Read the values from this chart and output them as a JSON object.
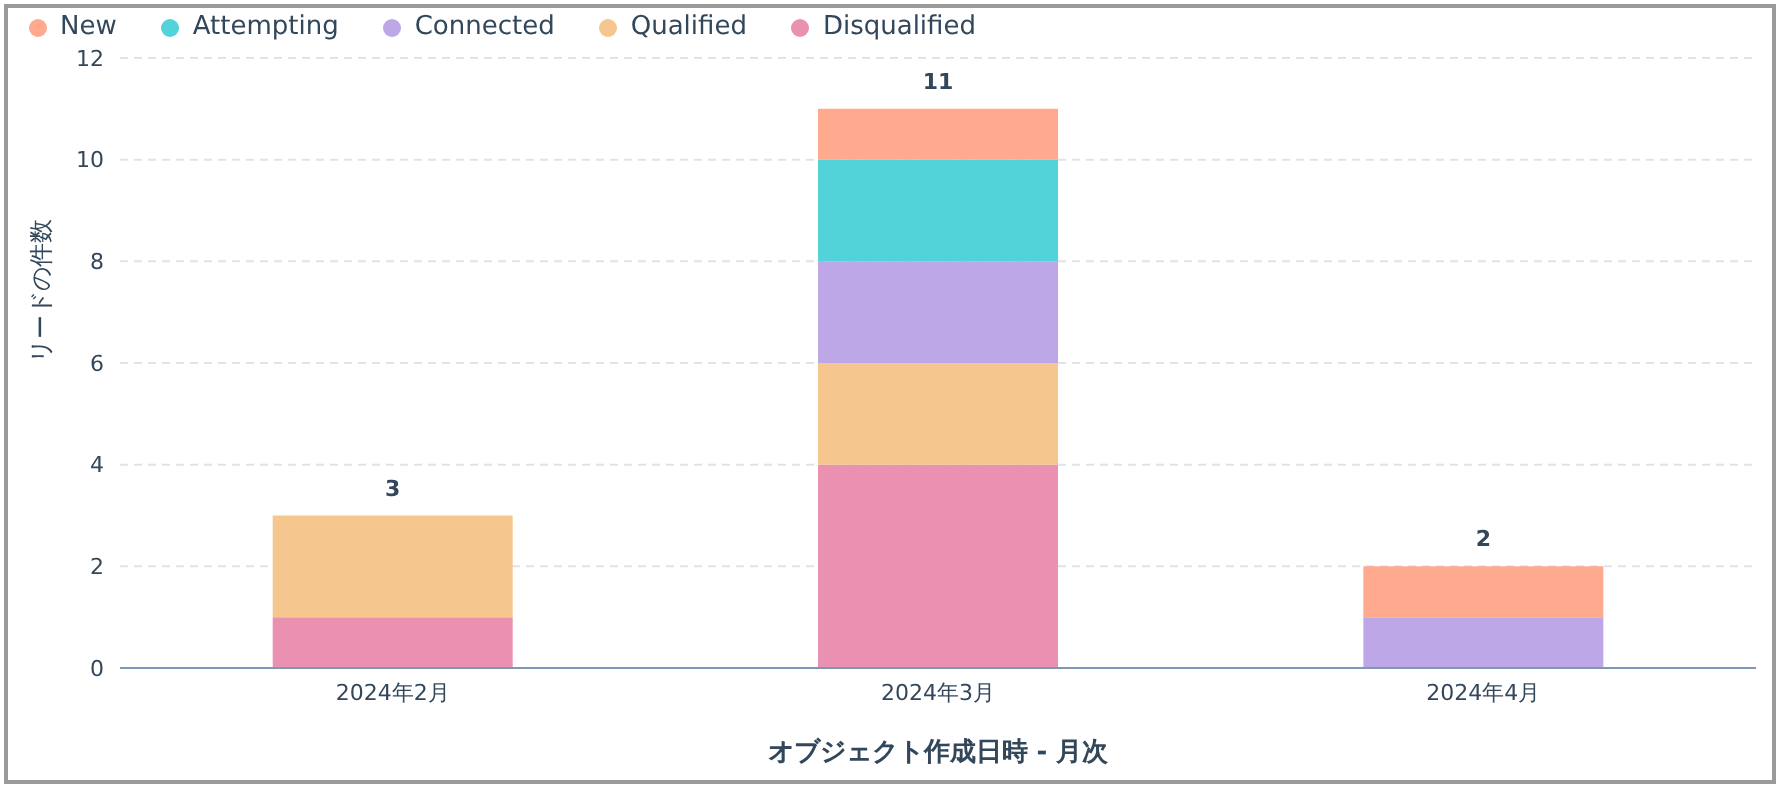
{
  "chart_data": {
    "type": "bar",
    "stacked": true,
    "xlabel": "オブジェクト作成日時 - 月次",
    "ylabel": "リードの件数",
    "categories": [
      "2024年2月",
      "2024年3月",
      "2024年4月"
    ],
    "series": [
      {
        "name": "Disqualified",
        "color": "#ea90b1",
        "values": [
          1,
          4,
          null
        ]
      },
      {
        "name": "Qualified",
        "color": "#f5c78e",
        "values": [
          2,
          2,
          null
        ]
      },
      {
        "name": "Connected",
        "color": "#bda7e6",
        "values": [
          null,
          2,
          1
        ]
      },
      {
        "name": "Attempting",
        "color": "#51d3d9",
        "values": [
          null,
          2,
          null
        ]
      },
      {
        "name": "New",
        "color": "#ffa98f",
        "values": [
          null,
          1,
          1
        ]
      }
    ],
    "totals": [
      "3",
      "11",
      "2"
    ],
    "ylim": [
      0,
      12
    ],
    "yticks": [
      0,
      2,
      4,
      6,
      8,
      10,
      12
    ],
    "grid": "y",
    "legend": "top left"
  }
}
